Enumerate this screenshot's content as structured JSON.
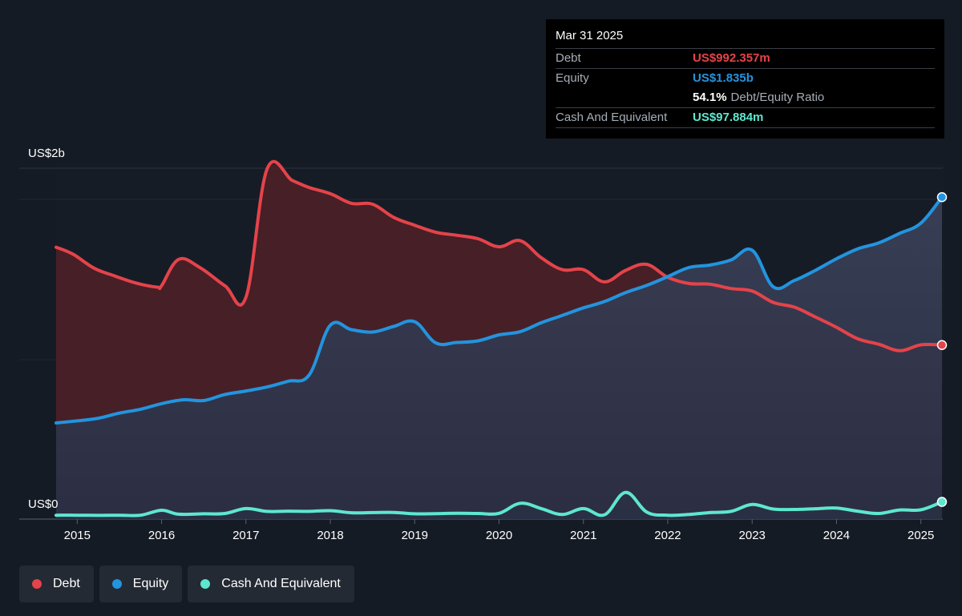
{
  "tooltip": {
    "date": "Mar 31 2025",
    "debt_label": "Debt",
    "debt_value": "US$992.357m",
    "equity_label": "Equity",
    "equity_value": "US$1.835b",
    "ratio_value": "54.1%",
    "ratio_label": "Debt/Equity Ratio",
    "cash_label": "Cash And Equivalent",
    "cash_value": "US$97.884m"
  },
  "legend": {
    "debt": "Debt",
    "equity": "Equity",
    "cash": "Cash And Equivalent"
  },
  "colors": {
    "debt": "#e5434a",
    "equity": "#2394df",
    "cash": "#5ee7d0",
    "background": "#151b24"
  },
  "chart_data": {
    "type": "area",
    "y_top_label": "US$2b",
    "y_bottom_label": "US$0",
    "ylim": [
      0,
      2000
    ],
    "xlim": [
      2014.7,
      2025.25
    ],
    "x_ticks": [
      2015,
      2016,
      2017,
      2018,
      2019,
      2020,
      2021,
      2022,
      2023,
      2024,
      2025
    ],
    "x_tick_labels": [
      "2015",
      "2016",
      "2017",
      "2018",
      "2019",
      "2020",
      "2021",
      "2022",
      "2023",
      "2024",
      "2025"
    ],
    "units": "US$ millions",
    "series": [
      {
        "name": "Debt",
        "points": [
          [
            2014.75,
            1550
          ],
          [
            2014.95,
            1510
          ],
          [
            2015.2,
            1430
          ],
          [
            2015.45,
            1385
          ],
          [
            2015.7,
            1345
          ],
          [
            2015.95,
            1322
          ],
          [
            2016.0,
            1330
          ],
          [
            2016.2,
            1480
          ],
          [
            2016.45,
            1435
          ],
          [
            2016.75,
            1330
          ],
          [
            2017.0,
            1265
          ],
          [
            2017.25,
            1995
          ],
          [
            2017.55,
            1930
          ],
          [
            2017.75,
            1890
          ],
          [
            2018.0,
            1855
          ],
          [
            2018.25,
            1800
          ],
          [
            2018.5,
            1795
          ],
          [
            2018.75,
            1720
          ],
          [
            2019.0,
            1675
          ],
          [
            2019.25,
            1635
          ],
          [
            2019.5,
            1618
          ],
          [
            2019.75,
            1598
          ],
          [
            2020.0,
            1552
          ],
          [
            2020.25,
            1587
          ],
          [
            2020.5,
            1490
          ],
          [
            2020.75,
            1422
          ],
          [
            2021.0,
            1422
          ],
          [
            2021.25,
            1352
          ],
          [
            2021.5,
            1418
          ],
          [
            2021.75,
            1452
          ],
          [
            2022.0,
            1378
          ],
          [
            2022.25,
            1343
          ],
          [
            2022.5,
            1339
          ],
          [
            2022.75,
            1314
          ],
          [
            2023.0,
            1300
          ],
          [
            2023.25,
            1235
          ],
          [
            2023.5,
            1208
          ],
          [
            2023.75,
            1152
          ],
          [
            2024.0,
            1093
          ],
          [
            2024.25,
            1028
          ],
          [
            2024.5,
            997
          ],
          [
            2024.75,
            960
          ],
          [
            2025.0,
            993
          ],
          [
            2025.25,
            992
          ]
        ]
      },
      {
        "name": "Equity",
        "points": [
          [
            2014.75,
            548
          ],
          [
            2015.0,
            560
          ],
          [
            2015.25,
            575
          ],
          [
            2015.5,
            604
          ],
          [
            2015.75,
            626
          ],
          [
            2016.0,
            658
          ],
          [
            2016.25,
            680
          ],
          [
            2016.5,
            676
          ],
          [
            2016.75,
            710
          ],
          [
            2017.0,
            730
          ],
          [
            2017.25,
            753
          ],
          [
            2017.5,
            786
          ],
          [
            2017.75,
            822
          ],
          [
            2018.0,
            1105
          ],
          [
            2018.25,
            1080
          ],
          [
            2018.5,
            1066
          ],
          [
            2018.75,
            1098
          ],
          [
            2019.0,
            1125
          ],
          [
            2019.25,
            1004
          ],
          [
            2019.5,
            1007
          ],
          [
            2019.75,
            1016
          ],
          [
            2020.0,
            1050
          ],
          [
            2020.25,
            1068
          ],
          [
            2020.5,
            1119
          ],
          [
            2020.75,
            1161
          ],
          [
            2021.0,
            1204
          ],
          [
            2021.25,
            1240
          ],
          [
            2021.5,
            1291
          ],
          [
            2021.75,
            1332
          ],
          [
            2022.0,
            1382
          ],
          [
            2022.25,
            1434
          ],
          [
            2022.5,
            1448
          ],
          [
            2022.75,
            1477
          ],
          [
            2023.0,
            1533
          ],
          [
            2023.25,
            1324
          ],
          [
            2023.5,
            1360
          ],
          [
            2023.75,
            1418
          ],
          [
            2024.0,
            1484
          ],
          [
            2024.25,
            1540
          ],
          [
            2024.5,
            1574
          ],
          [
            2024.75,
            1629
          ],
          [
            2025.0,
            1687
          ],
          [
            2025.25,
            1835
          ]
        ]
      },
      {
        "name": "Cash And Equivalent",
        "points": [
          [
            2014.75,
            22
          ],
          [
            2015.0,
            22
          ],
          [
            2015.25,
            21
          ],
          [
            2015.5,
            22
          ],
          [
            2015.75,
            22
          ],
          [
            2016.0,
            50
          ],
          [
            2016.2,
            28
          ],
          [
            2016.5,
            30
          ],
          [
            2016.75,
            32
          ],
          [
            2017.0,
            60
          ],
          [
            2017.25,
            44
          ],
          [
            2017.5,
            45
          ],
          [
            2017.75,
            44
          ],
          [
            2018.0,
            48
          ],
          [
            2018.25,
            36
          ],
          [
            2018.5,
            37
          ],
          [
            2018.75,
            38
          ],
          [
            2019.0,
            30
          ],
          [
            2019.25,
            31
          ],
          [
            2019.5,
            33
          ],
          [
            2019.75,
            32
          ],
          [
            2020.0,
            33
          ],
          [
            2020.25,
            90
          ],
          [
            2020.5,
            60
          ],
          [
            2020.75,
            26
          ],
          [
            2021.0,
            60
          ],
          [
            2021.25,
            24
          ],
          [
            2021.5,
            152
          ],
          [
            2021.75,
            40
          ],
          [
            2022.0,
            22
          ],
          [
            2022.25,
            26
          ],
          [
            2022.5,
            37
          ],
          [
            2022.75,
            44
          ],
          [
            2023.0,
            83
          ],
          [
            2023.25,
            57
          ],
          [
            2023.5,
            55
          ],
          [
            2023.75,
            59
          ],
          [
            2024.0,
            63
          ],
          [
            2024.25,
            45
          ],
          [
            2024.5,
            32
          ],
          [
            2024.75,
            52
          ],
          [
            2025.0,
            53
          ],
          [
            2025.25,
            98
          ]
        ]
      }
    ]
  }
}
